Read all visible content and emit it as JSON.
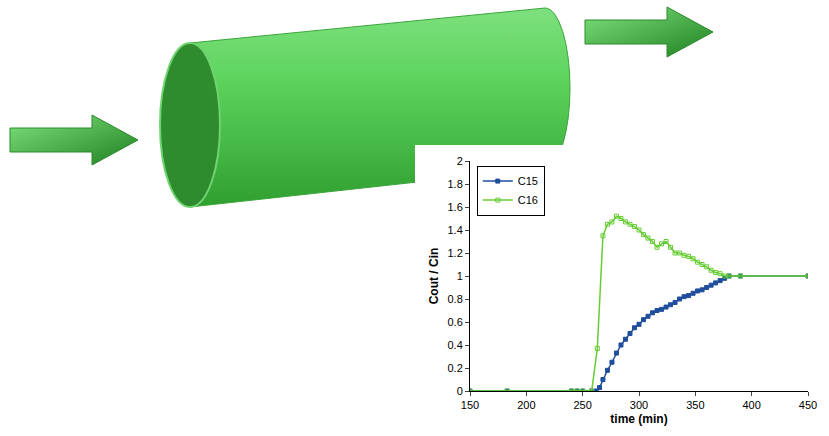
{
  "chart_data": {
    "type": "line",
    "x_label": "time (min)",
    "y_label": "Cout / Cin",
    "xlim": [
      150,
      450
    ],
    "xticks": [
      150,
      200,
      250,
      300,
      350,
      400,
      450
    ],
    "ylim": [
      0,
      2
    ],
    "yticks": [
      0,
      0.2,
      0.4,
      0.6,
      0.8,
      1,
      1.2,
      1.4,
      1.6,
      1.8,
      2
    ],
    "grid": false,
    "legend": "upper left",
    "series": [
      {
        "name": "C15",
        "color": "#1f4e9c",
        "marker": "square",
        "line_style": "solid",
        "x": [
          150,
          183,
          240,
          245,
          250,
          258,
          262,
          265,
          268,
          272,
          276,
          280,
          284,
          288,
          292,
          296,
          300,
          304,
          308,
          312,
          316,
          320,
          324,
          328,
          332,
          336,
          340,
          344,
          348,
          352,
          356,
          360,
          364,
          368,
          372,
          376,
          380,
          390,
          450
        ],
        "values": [
          0,
          0,
          0,
          0,
          0,
          0,
          0,
          0.03,
          0.1,
          0.18,
          0.25,
          0.33,
          0.4,
          0.45,
          0.5,
          0.55,
          0.58,
          0.62,
          0.65,
          0.68,
          0.7,
          0.71,
          0.73,
          0.75,
          0.77,
          0.8,
          0.82,
          0.83,
          0.85,
          0.87,
          0.88,
          0.9,
          0.92,
          0.94,
          0.96,
          0.98,
          1.0,
          1.0,
          1.0
        ]
      },
      {
        "name": "C16",
        "color": "#66cc33",
        "marker": "square-open",
        "line_style": "solid",
        "x": [
          150,
          183,
          240,
          245,
          250,
          258,
          263,
          268,
          272,
          276,
          280,
          284,
          288,
          292,
          296,
          300,
          304,
          308,
          312,
          316,
          320,
          324,
          328,
          332,
          336,
          340,
          344,
          348,
          352,
          356,
          360,
          364,
          368,
          372,
          376,
          380,
          390,
          450
        ],
        "values": [
          0,
          0,
          0,
          0,
          0,
          0,
          0.37,
          1.35,
          1.45,
          1.47,
          1.52,
          1.5,
          1.47,
          1.45,
          1.43,
          1.4,
          1.36,
          1.33,
          1.3,
          1.25,
          1.28,
          1.3,
          1.25,
          1.2,
          1.2,
          1.18,
          1.17,
          1.15,
          1.12,
          1.1,
          1.08,
          1.05,
          1.03,
          1.02,
          1.0,
          1.0,
          1.0,
          1.0
        ]
      }
    ]
  }
}
